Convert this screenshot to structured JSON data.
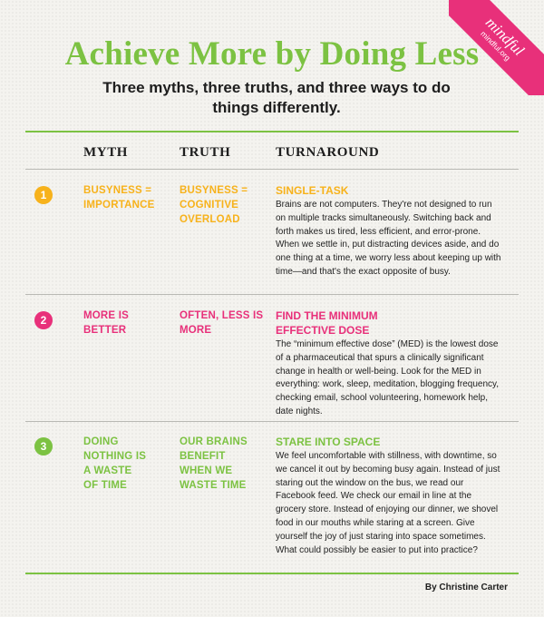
{
  "brand": {
    "name": "mindful",
    "url": "mindful.org",
    "color": "#e8307a"
  },
  "title": "Achieve More by Doing Less",
  "subtitle": "Three myths, three truths, and three ways to do things differently.",
  "columns": {
    "myth": "MYTH",
    "truth": "TRUTH",
    "turnaround": "TURNAROUND"
  },
  "colors": {
    "accent_green": "#7cc242",
    "yellow": "#f7b21b",
    "pink": "#e8307a",
    "green": "#7cc242"
  },
  "rows": [
    {
      "number": "1",
      "color": "#f7b21b",
      "myth": "BUSYNESS = IMPORTANCE",
      "truth": "BUSYNESS = COGNITIVE OVERLOAD",
      "turnaround_title": "SINGLE-TASK",
      "turnaround_body": "Brains are not computers. They're not designed to run on multiple tracks simultaneously. Switching back and forth makes us tired, less efficient, and error-prone. When we settle in, put distracting devices aside, and do one thing at a time, we worry less about keeping up with time—and that's the exact opposite of busy."
    },
    {
      "number": "2",
      "color": "#e8307a",
      "myth": "MORE IS BETTER",
      "truth": "OFTEN, LESS IS MORE",
      "turnaround_title": "FIND THE MINIMUM EFFECTIVE DOSE",
      "turnaround_body": "The “minimum effective dose” (MED) is the lowest dose of a pharmaceutical that spurs a clinically significant change in health or well-being. Look for the MED in everything: work, sleep, meditation, blogging frequency, checking email, school volunteering, homework help, date nights."
    },
    {
      "number": "3",
      "color": "#7cc242",
      "myth": "DOING NOTHING IS A WASTE OF TIME",
      "truth": "OUR BRAINS BENEFIT WHEN WE WASTE TIME",
      "turnaround_title": "STARE INTO SPACE",
      "turnaround_body": "We feel uncomfortable with stillness, with downtime, so we cancel it out by becoming busy again. Instead of just staring out the window on the bus, we read our Facebook feed. We check our email in line at the grocery store. Instead of enjoying our dinner, we shovel food in our mouths while staring at a screen. Give yourself the joy of just staring into space sometimes. What could possibly be easier to put into practice?"
    }
  ],
  "byline": "By Christine Carter"
}
